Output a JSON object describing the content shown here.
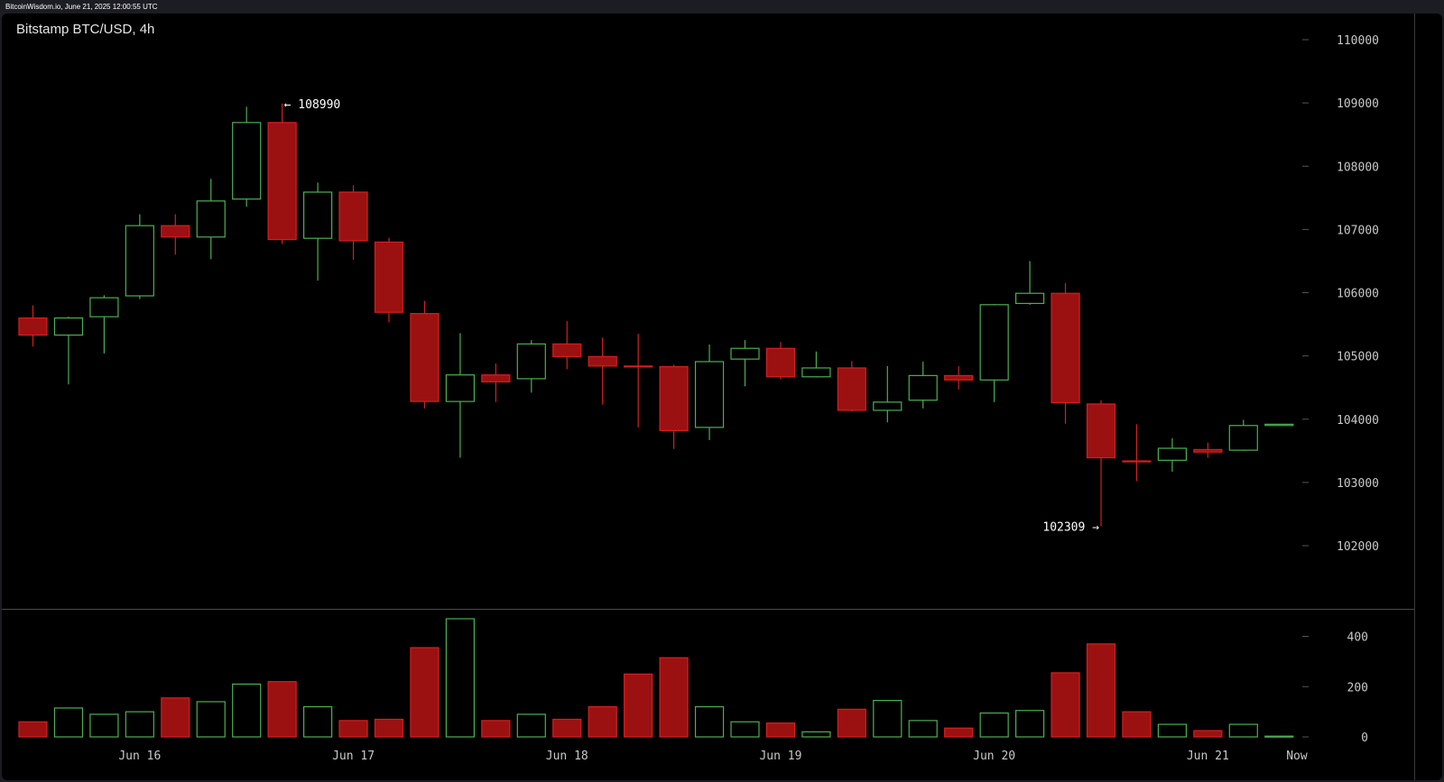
{
  "header": {
    "caption": "BitcoinWisdom.io, June 21, 2025 12:00:55 UTC"
  },
  "colors": {
    "up": "#4caf50",
    "down": "#9b1111",
    "down_edge": "#d42020",
    "background": "#000000",
    "frame": "#1c1d22",
    "grid_tick": "#555555"
  },
  "chart_data": {
    "type": "candlestick",
    "title": "Bitstamp BTC/USD, 4h",
    "price_axis": {
      "ylim": [
        101000,
        110400
      ],
      "ticks": [
        102000,
        103000,
        104000,
        105000,
        106000,
        107000,
        108000,
        109000,
        110000
      ],
      "tick_labels": [
        "102000",
        "103000",
        "104000",
        "105000",
        "106000",
        "107000",
        "108000",
        "109000",
        "110000"
      ]
    },
    "volume_axis": {
      "ylim": [
        0,
        470
      ],
      "ticks": [
        0,
        200,
        400
      ],
      "tick_labels": [
        "0",
        "200",
        "400"
      ]
    },
    "x_labels": [
      {
        "label": "Jun 16",
        "at_candle": 3
      },
      {
        "label": "Jun 17",
        "at_candle": 9
      },
      {
        "label": "Jun 18",
        "at_candle": 15
      },
      {
        "label": "Jun 19",
        "at_candle": 21
      },
      {
        "label": "Jun 20",
        "at_candle": 27
      },
      {
        "label": "Jun 21",
        "at_candle": 33
      },
      {
        "label": "Now",
        "at_candle": 35.5
      }
    ],
    "annotations": {
      "high": {
        "label": "← 108990",
        "value": 108990,
        "candle": 7,
        "side": "right"
      },
      "low": {
        "label": "102309 →",
        "value": 102309,
        "candle": 30,
        "side": "left"
      }
    },
    "candles": [
      {
        "o": 105600,
        "h": 105800,
        "l": 105150,
        "c": 105330,
        "v": 60
      },
      {
        "o": 105330,
        "h": 105620,
        "l": 104550,
        "c": 105600,
        "v": 115
      },
      {
        "o": 105620,
        "h": 105960,
        "l": 105040,
        "c": 105920,
        "v": 90
      },
      {
        "o": 105950,
        "h": 107240,
        "l": 105900,
        "c": 107060,
        "v": 100
      },
      {
        "o": 107060,
        "h": 107240,
        "l": 106600,
        "c": 106880,
        "v": 155
      },
      {
        "o": 106880,
        "h": 107800,
        "l": 106530,
        "c": 107450,
        "v": 140
      },
      {
        "o": 107480,
        "h": 108940,
        "l": 107360,
        "c": 108690,
        "v": 210
      },
      {
        "o": 108690,
        "h": 108990,
        "l": 106770,
        "c": 106840,
        "v": 220
      },
      {
        "o": 106860,
        "h": 107740,
        "l": 106190,
        "c": 107590,
        "v": 120
      },
      {
        "o": 107590,
        "h": 107700,
        "l": 106520,
        "c": 106820,
        "v": 65
      },
      {
        "o": 106800,
        "h": 106870,
        "l": 105530,
        "c": 105690,
        "v": 70
      },
      {
        "o": 105670,
        "h": 105870,
        "l": 104170,
        "c": 104280,
        "v": 355
      },
      {
        "o": 104280,
        "h": 105360,
        "l": 103390,
        "c": 104700,
        "v": 470
      },
      {
        "o": 104700,
        "h": 104880,
        "l": 104270,
        "c": 104590,
        "v": 65
      },
      {
        "o": 104640,
        "h": 105250,
        "l": 104420,
        "c": 105190,
        "v": 90
      },
      {
        "o": 105190,
        "h": 105550,
        "l": 104790,
        "c": 104990,
        "v": 70
      },
      {
        "o": 104990,
        "h": 105290,
        "l": 104230,
        "c": 104840,
        "v": 120
      },
      {
        "o": 104840,
        "h": 105350,
        "l": 103870,
        "c": 104830,
        "v": 250
      },
      {
        "o": 104830,
        "h": 104860,
        "l": 103530,
        "c": 103820,
        "v": 315
      },
      {
        "o": 103870,
        "h": 105180,
        "l": 103670,
        "c": 104910,
        "v": 120
      },
      {
        "o": 104950,
        "h": 105250,
        "l": 104520,
        "c": 105120,
        "v": 60
      },
      {
        "o": 105120,
        "h": 105220,
        "l": 104630,
        "c": 104670,
        "v": 55
      },
      {
        "o": 104670,
        "h": 105070,
        "l": 104660,
        "c": 104810,
        "v": 20
      },
      {
        "o": 104810,
        "h": 104920,
        "l": 104120,
        "c": 104140,
        "v": 110
      },
      {
        "o": 104140,
        "h": 104840,
        "l": 103950,
        "c": 104270,
        "v": 145
      },
      {
        "o": 104300,
        "h": 104910,
        "l": 104170,
        "c": 104690,
        "v": 65
      },
      {
        "o": 104690,
        "h": 104840,
        "l": 104470,
        "c": 104620,
        "v": 35
      },
      {
        "o": 104620,
        "h": 105820,
        "l": 104270,
        "c": 105810,
        "v": 95
      },
      {
        "o": 105830,
        "h": 106500,
        "l": 105810,
        "c": 105990,
        "v": 105
      },
      {
        "o": 105990,
        "h": 106150,
        "l": 103930,
        "c": 104260,
        "v": 255
      },
      {
        "o": 104240,
        "h": 104300,
        "l": 102309,
        "c": 103390,
        "v": 370
      },
      {
        "o": 103340,
        "h": 103920,
        "l": 103020,
        "c": 103330,
        "v": 100
      },
      {
        "o": 103350,
        "h": 103700,
        "l": 103170,
        "c": 103540,
        "v": 50
      },
      {
        "o": 103520,
        "h": 103630,
        "l": 103390,
        "c": 103480,
        "v": 25
      },
      {
        "o": 103510,
        "h": 103990,
        "l": 103500,
        "c": 103900,
        "v": 50
      },
      {
        "o": 103900,
        "h": 103920,
        "l": 103900,
        "c": 103920,
        "v": 3
      }
    ]
  }
}
